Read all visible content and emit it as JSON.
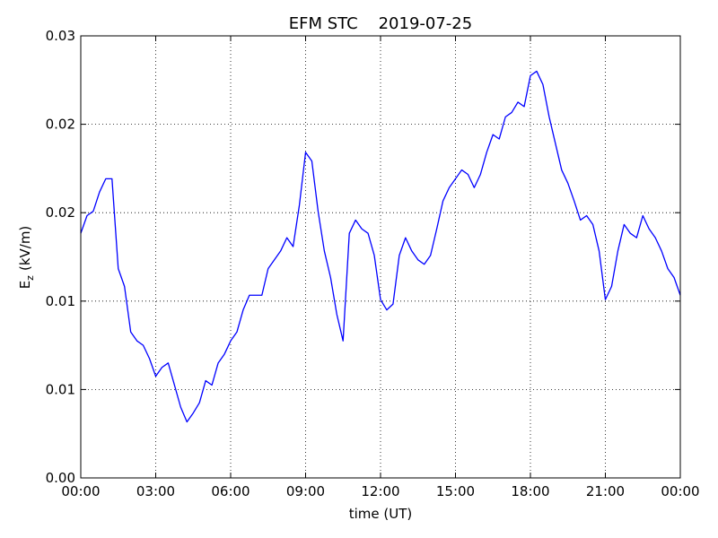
{
  "chart_data": {
    "type": "line",
    "title": "EFM STC    2019-07-25",
    "xlabel": "time (UT)",
    "ylabel": {
      "symbol": "E",
      "subscript": "z",
      "unit": "(kV/m)"
    },
    "xlim": [
      0,
      24
    ],
    "xticks": [
      {
        "value": 0,
        "label": "00:00"
      },
      {
        "value": 3,
        "label": "03:00"
      },
      {
        "value": 6,
        "label": "06:00"
      },
      {
        "value": 9,
        "label": "09:00"
      },
      {
        "value": 12,
        "label": "12:00"
      },
      {
        "value": 15,
        "label": "15:00"
      },
      {
        "value": 18,
        "label": "18:00"
      },
      {
        "value": 21,
        "label": "21:00"
      },
      {
        "value": 24,
        "label": "00:00"
      }
    ],
    "ylim": [
      0,
      0.03
    ],
    "yticks": [
      {
        "value": 0,
        "label": "0.00"
      },
      {
        "value": 0.006,
        "label": "0.01"
      },
      {
        "value": 0.012,
        "label": "0.01"
      },
      {
        "value": 0.018,
        "label": "0.02"
      },
      {
        "value": 0.024,
        "label": "0.02"
      },
      {
        "value": 0.03,
        "label": "0.03"
      }
    ],
    "grid": true,
    "x": [
      0,
      0.25,
      0.5,
      0.75,
      1,
      1.25,
      1.5,
      1.75,
      2,
      2.25,
      2.5,
      2.75,
      3,
      3.25,
      3.5,
      3.75,
      4,
      4.25,
      4.5,
      4.75,
      5,
      5.25,
      5.5,
      5.75,
      6,
      6.25,
      6.5,
      6.75,
      7,
      7.25,
      7.5,
      7.75,
      8,
      8.25,
      8.5,
      8.75,
      9,
      9.25,
      9.5,
      9.75,
      10,
      10.25,
      10.5,
      10.75,
      11,
      11.25,
      11.5,
      11.75,
      12,
      12.25,
      12.5,
      12.75,
      13,
      13.25,
      13.5,
      13.75,
      14,
      14.25,
      14.5,
      14.75,
      15,
      15.25,
      15.5,
      15.75,
      16,
      16.25,
      16.5,
      16.75,
      17,
      17.25,
      17.5,
      17.75,
      18,
      18.25,
      18.5,
      18.75,
      19,
      19.25,
      19.5,
      19.75,
      20,
      20.25,
      20.5,
      20.75,
      21,
      21.25,
      21.5,
      21.75,
      22,
      22.25,
      22.5,
      22.75,
      23,
      23.25,
      23.5,
      23.75,
      24
    ],
    "series": [
      {
        "color": "#0000ff",
        "values": [
          0.0166,
          0.0178,
          0.0181,
          0.0194,
          0.0203,
          0.0203,
          0.0142,
          0.013,
          0.0099,
          0.0093,
          0.009,
          0.0081,
          0.0069,
          0.0075,
          0.0078,
          0.0063,
          0.0048,
          0.0038,
          0.0044,
          0.0051,
          0.0066,
          0.0063,
          0.0078,
          0.0084,
          0.0093,
          0.0099,
          0.0114,
          0.0124,
          0.0124,
          0.0124,
          0.0142,
          0.0148,
          0.0154,
          0.0163,
          0.0157,
          0.0185,
          0.0221,
          0.0215,
          0.0181,
          0.0154,
          0.0136,
          0.0111,
          0.0093,
          0.0166,
          0.0175,
          0.0169,
          0.0166,
          0.0151,
          0.0121,
          0.0114,
          0.0118,
          0.0151,
          0.0163,
          0.0154,
          0.0148,
          0.0145,
          0.0151,
          0.0169,
          0.0188,
          0.0197,
          0.0203,
          0.0209,
          0.0206,
          0.0197,
          0.0206,
          0.0221,
          0.0233,
          0.023,
          0.0245,
          0.0248,
          0.0255,
          0.0252,
          0.0273,
          0.0276,
          0.0267,
          0.0245,
          0.0227,
          0.0209,
          0.02,
          0.0188,
          0.0175,
          0.0178,
          0.0172,
          0.0154,
          0.0121,
          0.013,
          0.0154,
          0.0172,
          0.0166,
          0.0163,
          0.0178,
          0.0169,
          0.0163,
          0.0154,
          0.0142,
          0.0136,
          0.0124
        ]
      }
    ]
  }
}
